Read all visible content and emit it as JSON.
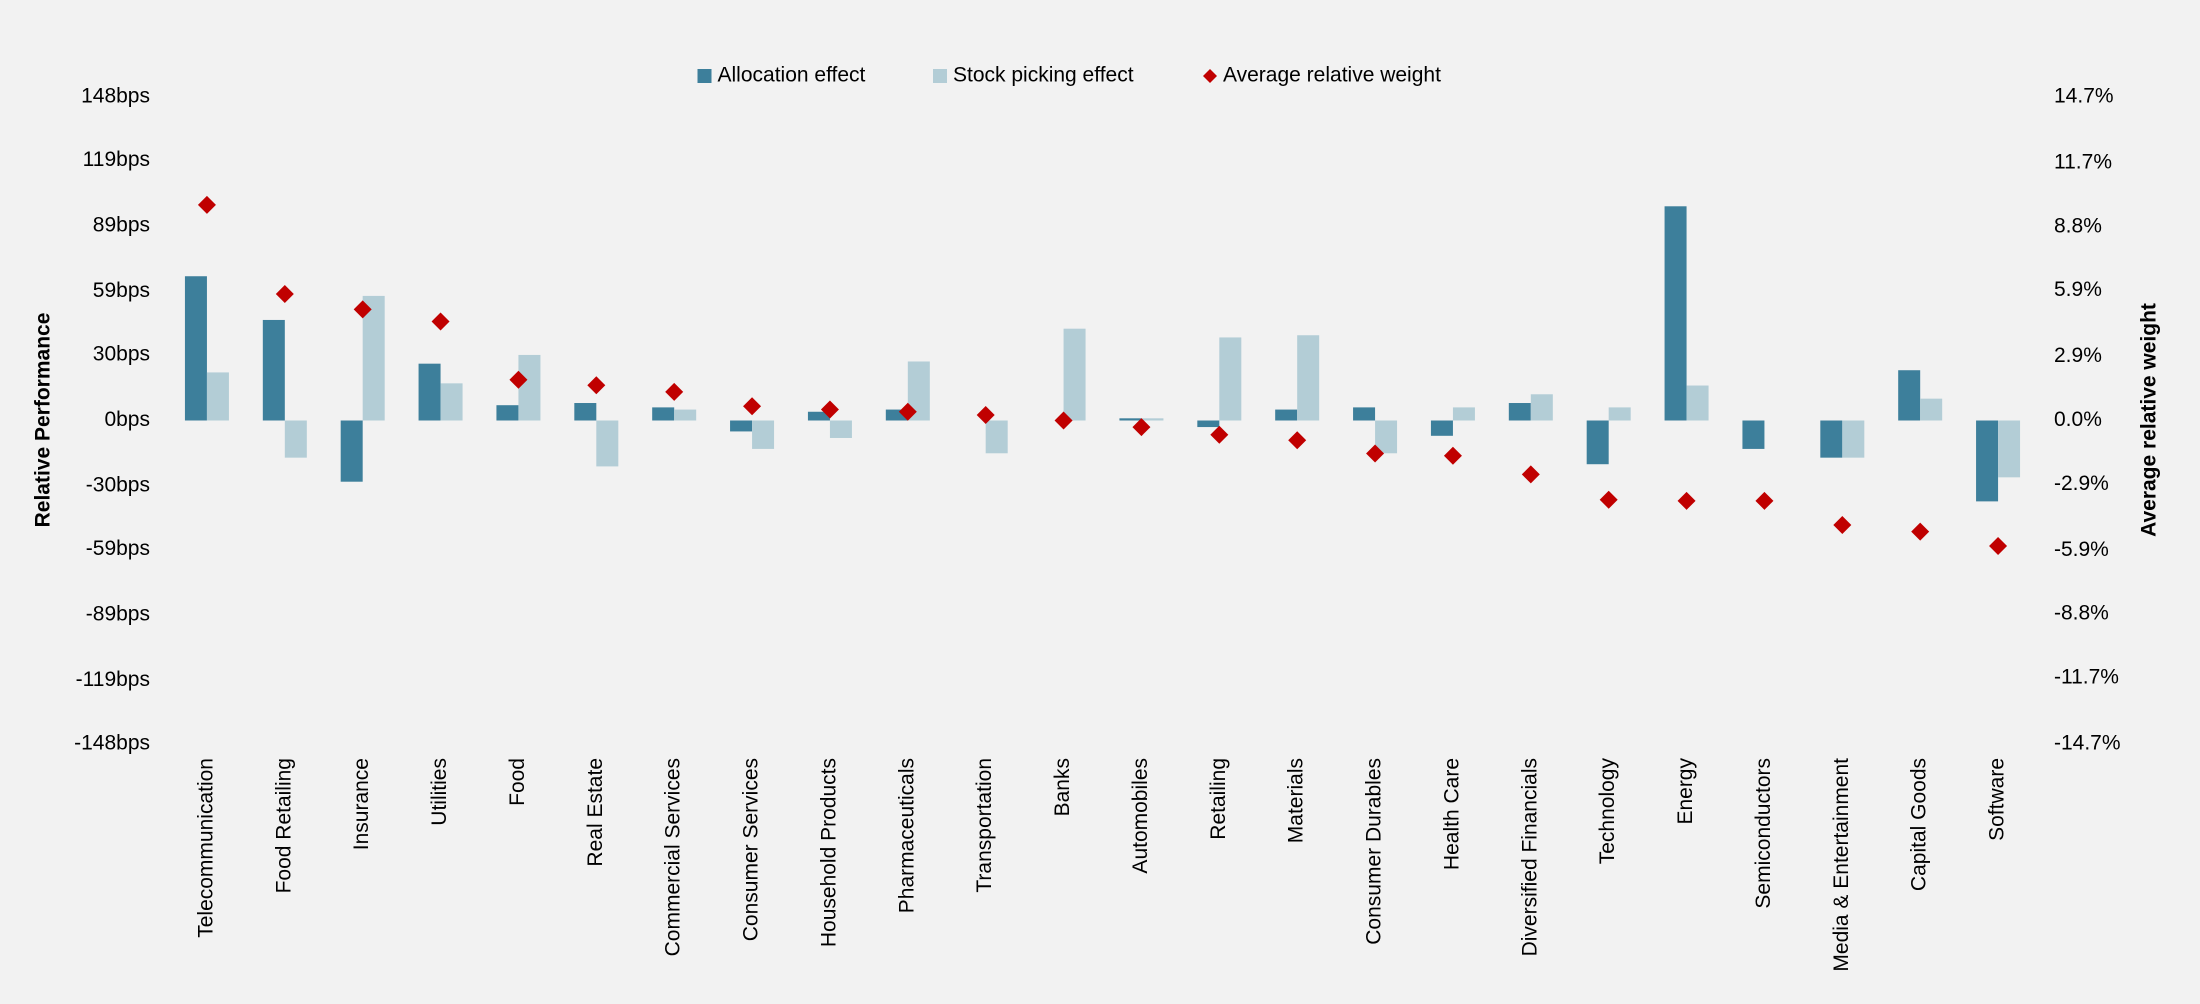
{
  "chart_data": {
    "type": "bar",
    "y_title": "Relative Performance",
    "y2_title": "Average relative weight",
    "categories": [
      "Telecommunication",
      "Food Retailing",
      "Insurance",
      "Utilities",
      "Food",
      "Real Estate",
      "Commercial Services",
      "Consumer Services",
      "Household Products",
      "Pharmaceuticals",
      "Transportation",
      "Banks",
      "Automobiles",
      "Retailing",
      "Materials",
      "Consumer Durables",
      "Health Care",
      "Diversified Financials",
      "Technology",
      "Energy",
      "Semiconductors",
      "Media & Entertainment",
      "Capital Goods",
      "Software"
    ],
    "series": [
      {
        "name": "Allocation effect",
        "type": "bar",
        "color": "#3d7f9b",
        "values": [
          66,
          46,
          -28,
          26,
          7,
          8,
          6,
          -5,
          4,
          5,
          0,
          0,
          1,
          -3,
          5,
          6,
          -7,
          8,
          -20,
          98,
          -13,
          -17,
          23,
          -37
        ]
      },
      {
        "name": "Stock picking effect",
        "type": "bar",
        "color": "#b3cdd6",
        "values": [
          22,
          -17,
          57,
          17,
          30,
          -21,
          5,
          -13,
          -8,
          27,
          -15,
          42,
          1,
          38,
          39,
          -15,
          6,
          12,
          6,
          16,
          0,
          -17,
          10,
          -26
        ]
      },
      {
        "name": "Average relative weight",
        "type": "scatter",
        "axis": "y2",
        "color": "#c00000",
        "values": [
          9.8,
          5.75,
          5.05,
          4.5,
          1.85,
          1.6,
          1.3,
          0.65,
          0.5,
          0.4,
          0.25,
          0.0,
          -0.3,
          -0.65,
          -0.9,
          -1.5,
          -1.6,
          -2.45,
          -3.6,
          -3.65,
          -3.65,
          -4.75,
          -5.05,
          -5.7
        ]
      }
    ],
    "ylim": [
      -148,
      148
    ],
    "yticks": [
      {
        "value": 148,
        "label": "148bps"
      },
      {
        "value": 119,
        "label": "119bps"
      },
      {
        "value": 89,
        "label": "89bps"
      },
      {
        "value": 59,
        "label": "59bps"
      },
      {
        "value": 30,
        "label": "30bps"
      },
      {
        "value": 0,
        "label": "0bps"
      },
      {
        "value": -30,
        "label": "-30bps"
      },
      {
        "value": -59,
        "label": "-59bps"
      },
      {
        "value": -89,
        "label": "-89bps"
      },
      {
        "value": -119,
        "label": "-119bps"
      },
      {
        "value": -148,
        "label": "-148bps"
      }
    ],
    "y2lim": [
      -14.7,
      14.7
    ],
    "y2ticks": [
      {
        "value": 14.7,
        "label": "14.7%"
      },
      {
        "value": 11.7,
        "label": "11.7%"
      },
      {
        "value": 8.8,
        "label": "8.8%"
      },
      {
        "value": 5.9,
        "label": "5.9%"
      },
      {
        "value": 2.9,
        "label": "2.9%"
      },
      {
        "value": 0,
        "label": "0.0%"
      },
      {
        "value": -2.9,
        "label": "-2.9%"
      },
      {
        "value": -5.9,
        "label": "-5.9%"
      },
      {
        "value": -8.8,
        "label": "-8.8%"
      },
      {
        "value": -11.7,
        "label": "-11.7%"
      },
      {
        "value": -14.7,
        "label": "-14.7%"
      }
    ],
    "grid": false,
    "legend": "top"
  }
}
